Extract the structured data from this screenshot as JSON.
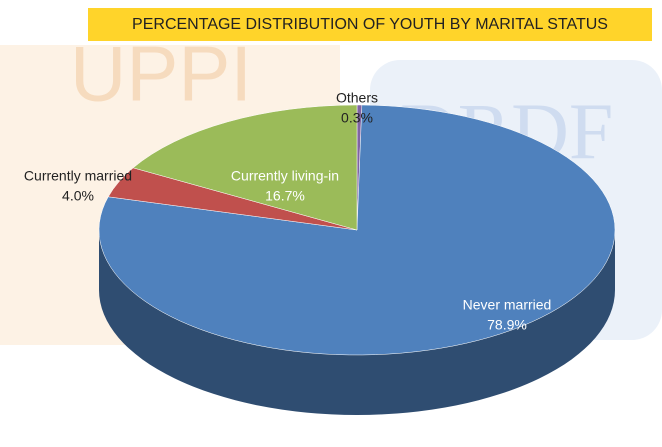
{
  "chart_data": {
    "type": "pie",
    "title": "PERCENTAGE DISTRIBUTION OF YOUTH BY MARITAL STATUS",
    "watermarks": [
      "UPPI",
      "DRDF"
    ],
    "categories": [
      "Others",
      "Never married",
      "Currently married",
      "Currently living-in"
    ],
    "values": [
      0.3,
      78.9,
      4.0,
      16.7
    ],
    "value_labels": [
      "0.3%",
      "78.9%",
      "4.0%",
      "16.7%"
    ],
    "colors": [
      "#8064a2",
      "#4f81bd",
      "#c0504d",
      "#9bbb59"
    ]
  }
}
